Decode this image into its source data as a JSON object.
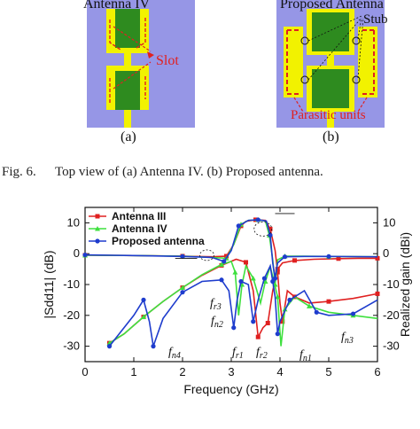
{
  "figure6": {
    "panel_a": {
      "title": "Antenna IV",
      "slot_label": "Slot",
      "sub_label": "(a)"
    },
    "panel_b": {
      "title": "Proposed Antenna",
      "stub_label": "Stub",
      "parasitic_label": "Parasitic units",
      "sub_label": "(b)"
    },
    "caption_prefix": "Fig. 6.",
    "caption_text": "Top view of (a) Antenna IV. (b) Proposed antenna."
  },
  "colors": {
    "substrate": "#9696e6",
    "patch_yellow": "#f2f200",
    "patch_green": "#2e8b1f",
    "red": "#e02020",
    "blue": "#1e3ccd",
    "green_curve": "#3ee03e"
  },
  "chart_data": {
    "type": "line",
    "xlabel": "Frequency (GHz)",
    "ylabel_left": "|Sdd11| (dB)",
    "ylabel_right": "Realized gain (dBi)",
    "xlim": [
      0,
      6
    ],
    "ylim_left": [
      -35,
      15
    ],
    "ylim_right": [
      -35,
      15
    ],
    "x_ticks": [
      "0",
      "1",
      "2",
      "3",
      "4",
      "5",
      "6"
    ],
    "y_ticks_left": [
      "10",
      "0",
      "-10",
      "-20",
      "-30"
    ],
    "y_ticks_right": [
      "10",
      "0",
      "-10",
      "-20",
      "-30"
    ],
    "series": [
      {
        "name": "Antenna III",
        "color": "#e02020",
        "marker": "square",
        "s11": [
          [
            0.5,
            -29
          ],
          [
            0.8,
            -26
          ],
          [
            1.2,
            -20.5
          ],
          [
            1.6,
            -15.5
          ],
          [
            2.0,
            -11
          ],
          [
            2.4,
            -7
          ],
          [
            2.8,
            -3.8
          ],
          [
            3.1,
            -1.8
          ],
          [
            3.3,
            -2.8
          ],
          [
            3.45,
            -12
          ],
          [
            3.55,
            -27
          ],
          [
            3.65,
            -24
          ],
          [
            3.75,
            -22.5
          ],
          [
            3.85,
            -12
          ],
          [
            3.95,
            -5
          ],
          [
            4.05,
            -3
          ],
          [
            4.3,
            -2.2
          ],
          [
            4.7,
            -1.8
          ],
          [
            5.2,
            -1.6
          ],
          [
            5.6,
            -1.5
          ],
          [
            6.0,
            -1.5
          ]
        ],
        "gain": [
          [
            0,
            -0.5
          ],
          [
            1.0,
            -0.6
          ],
          [
            2.0,
            -0.8
          ],
          [
            2.6,
            -1.0
          ],
          [
            2.9,
            -0.8
          ],
          [
            3.05,
            3
          ],
          [
            3.2,
            9
          ],
          [
            3.3,
            10.5
          ],
          [
            3.5,
            11
          ],
          [
            3.7,
            10.8
          ],
          [
            3.8,
            8
          ],
          [
            3.9,
            1
          ],
          [
            3.95,
            -6
          ],
          [
            4.0,
            -16
          ],
          [
            4.05,
            -22
          ],
          [
            4.15,
            -12
          ],
          [
            4.3,
            -14
          ],
          [
            4.6,
            -16
          ],
          [
            5.0,
            -15.5
          ],
          [
            5.5,
            -14.5
          ],
          [
            6.0,
            -13
          ]
        ]
      },
      {
        "name": "Antenna IV",
        "color": "#3ee03e",
        "marker": "triangle",
        "s11": [
          [
            0.5,
            -29
          ],
          [
            0.8,
            -26
          ],
          [
            1.2,
            -20.5
          ],
          [
            1.6,
            -15.5
          ],
          [
            2.0,
            -11
          ],
          [
            2.4,
            -6.8
          ],
          [
            2.8,
            -3.5
          ],
          [
            3.0,
            -2.5
          ],
          [
            3.08,
            -6
          ],
          [
            3.15,
            -20
          ],
          [
            3.22,
            -10
          ],
          [
            3.3,
            -4
          ],
          [
            3.45,
            -8
          ],
          [
            3.6,
            -16
          ],
          [
            3.7,
            -9
          ],
          [
            3.8,
            -4.2
          ],
          [
            3.95,
            -14
          ],
          [
            4.02,
            -30
          ],
          [
            4.1,
            -18
          ],
          [
            4.3,
            -14
          ],
          [
            4.6,
            -17
          ],
          [
            5.0,
            -19
          ],
          [
            5.5,
            -20
          ],
          [
            6.0,
            -21
          ]
        ],
        "gain": [
          [
            0,
            -0.5
          ],
          [
            1.0,
            -0.6
          ],
          [
            2.0,
            -0.8
          ],
          [
            2.6,
            -1.2
          ],
          [
            2.9,
            -1.5
          ],
          [
            3.05,
            3
          ],
          [
            3.2,
            9.5
          ],
          [
            3.35,
            10.8
          ],
          [
            3.55,
            11
          ],
          [
            3.7,
            10.6
          ],
          [
            3.78,
            6
          ],
          [
            3.85,
            -2
          ],
          [
            3.9,
            -10
          ],
          [
            3.95,
            -2
          ],
          [
            4.1,
            -0.8
          ],
          [
            4.5,
            -0.8
          ],
          [
            5.0,
            -0.9
          ],
          [
            6.0,
            -1.0
          ]
        ]
      },
      {
        "name": "Proposed antenna",
        "color": "#1e3ccd",
        "marker": "circle",
        "s11": [
          [
            0.5,
            -30
          ],
          [
            1.0,
            -20
          ],
          [
            1.2,
            -15
          ],
          [
            1.32,
            -22
          ],
          [
            1.4,
            -30
          ],
          [
            1.6,
            -21
          ],
          [
            2.0,
            -12.5
          ],
          [
            2.4,
            -9
          ],
          [
            2.8,
            -8.5
          ],
          [
            2.95,
            -12
          ],
          [
            3.05,
            -24
          ],
          [
            3.12,
            -15
          ],
          [
            3.2,
            -9
          ],
          [
            3.35,
            -10
          ],
          [
            3.45,
            -22
          ],
          [
            3.55,
            -15
          ],
          [
            3.68,
            -8
          ],
          [
            3.8,
            -4
          ],
          [
            3.85,
            -9
          ],
          [
            3.9,
            -14
          ],
          [
            3.95,
            -26
          ],
          [
            4.0,
            -22
          ],
          [
            4.2,
            -15
          ],
          [
            4.5,
            -12
          ],
          [
            4.75,
            -19
          ],
          [
            5.0,
            -20
          ],
          [
            5.5,
            -19.5
          ],
          [
            6.0,
            -15
          ]
        ],
        "gain": [
          [
            0,
            -0.4
          ],
          [
            1.0,
            -0.6
          ],
          [
            2.0,
            -0.9
          ],
          [
            2.6,
            -1.2
          ],
          [
            2.85,
            -2.5
          ],
          [
            3.0,
            1
          ],
          [
            3.15,
            9
          ],
          [
            3.35,
            10.8
          ],
          [
            3.55,
            11
          ],
          [
            3.72,
            10.6
          ],
          [
            3.8,
            6
          ],
          [
            3.85,
            -3
          ],
          [
            3.9,
            -8
          ],
          [
            3.95,
            -3
          ],
          [
            4.1,
            -1.0
          ],
          [
            4.5,
            -0.9
          ],
          [
            5.0,
            -0.9
          ],
          [
            6.0,
            -1.0
          ]
        ]
      }
    ],
    "annotations": [
      "fr3",
      "fn2",
      "fr1",
      "fr2",
      "fn1",
      "fn3",
      "fn4"
    ],
    "legend_position": "top-left",
    "grid": false
  }
}
